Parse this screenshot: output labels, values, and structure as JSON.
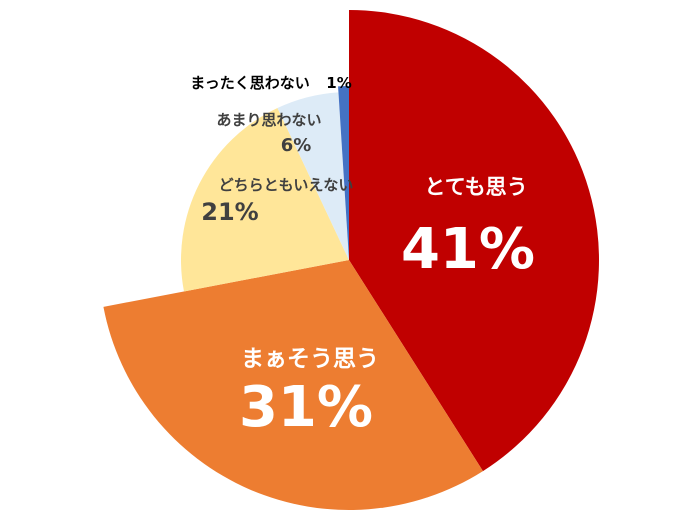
{
  "chart_data": {
    "type": "pie",
    "title": "",
    "slices": [
      {
        "label": "とても思う",
        "value": 41,
        "value_label": "41%",
        "color": "#C00000",
        "text_color": "#FFFFFF"
      },
      {
        "label": "まぁそう思う",
        "value": 31,
        "value_label": "31%",
        "color": "#ED7D31",
        "text_color": "#FFFFFF"
      },
      {
        "label": "どちらともいえない",
        "value": 21,
        "value_label": "21%",
        "color": "#FFE699",
        "text_color": "#404040"
      },
      {
        "label": "あまり思わない",
        "value": 6,
        "value_label": "6%",
        "color": "#DDEBF7",
        "text_color": "#404040"
      },
      {
        "label": "まったく思わない",
        "value": 1,
        "value_label": "1%",
        "color": "#4472C4",
        "text_color": "#000000"
      }
    ]
  }
}
